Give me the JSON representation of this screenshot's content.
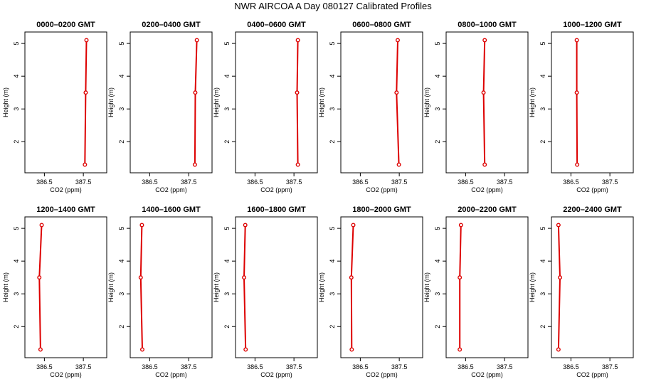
{
  "figure": {
    "title": "NWR AIRCOA A  Day 080127  Calibrated Profiles"
  },
  "colors": {
    "series": "#dd0000",
    "axis": "#000000"
  },
  "chart_data": [
    {
      "type": "line",
      "title": "0000–0200 GMT",
      "xlabel": "CO2 (ppm)",
      "ylabel": "Height (m)",
      "xlim": [
        386.0,
        388.1
      ],
      "ylim": [
        1.05,
        5.35
      ],
      "xticks": [
        {
          "v": 386.5,
          "label": "386.5"
        },
        {
          "v": 387.5,
          "label": "387.5"
        }
      ],
      "yticks": [
        {
          "v": 2,
          "label": "2"
        },
        {
          "v": 3,
          "label": "3"
        },
        {
          "v": 4,
          "label": "4"
        },
        {
          "v": 5,
          "label": "5"
        }
      ],
      "series": [
        {
          "x": [
            387.54,
            387.56,
            387.58
          ],
          "y": [
            1.3,
            3.5,
            5.1
          ]
        }
      ]
    },
    {
      "type": "line",
      "title": "0200–0400 GMT",
      "xlabel": "CO2 (ppm)",
      "ylabel": "Height (m)",
      "xlim": [
        386.0,
        388.1
      ],
      "ylim": [
        1.05,
        5.35
      ],
      "xticks": [
        {
          "v": 386.5,
          "label": "386.5"
        },
        {
          "v": 387.5,
          "label": "387.5"
        }
      ],
      "yticks": [
        {
          "v": 2,
          "label": "2"
        },
        {
          "v": 3,
          "label": "3"
        },
        {
          "v": 4,
          "label": "4"
        },
        {
          "v": 5,
          "label": "5"
        }
      ],
      "series": [
        {
          "x": [
            387.66,
            387.67,
            387.71
          ],
          "y": [
            1.3,
            3.5,
            5.1
          ]
        }
      ]
    },
    {
      "type": "line",
      "title": "0400–0600 GMT",
      "xlabel": "CO2 (ppm)",
      "ylabel": "Height (m)",
      "xlim": [
        386.0,
        388.1
      ],
      "ylim": [
        1.05,
        5.35
      ],
      "xticks": [
        {
          "v": 386.5,
          "label": "386.5"
        },
        {
          "v": 387.5,
          "label": "387.5"
        }
      ],
      "yticks": [
        {
          "v": 2,
          "label": "2"
        },
        {
          "v": 3,
          "label": "3"
        },
        {
          "v": 4,
          "label": "4"
        },
        {
          "v": 5,
          "label": "5"
        }
      ],
      "series": [
        {
          "x": [
            387.6,
            387.58,
            387.6
          ],
          "y": [
            1.3,
            3.5,
            5.1
          ]
        }
      ]
    },
    {
      "type": "line",
      "title": "0600–0800 GMT",
      "xlabel": "CO2 (ppm)",
      "ylabel": "Height (m)",
      "xlim": [
        386.0,
        388.1
      ],
      "ylim": [
        1.05,
        5.35
      ],
      "xticks": [
        {
          "v": 386.5,
          "label": "386.5"
        },
        {
          "v": 387.5,
          "label": "387.5"
        }
      ],
      "yticks": [
        {
          "v": 2,
          "label": "2"
        },
        {
          "v": 3,
          "label": "3"
        },
        {
          "v": 4,
          "label": "4"
        },
        {
          "v": 5,
          "label": "5"
        }
      ],
      "series": [
        {
          "x": [
            387.49,
            387.43,
            387.46
          ],
          "y": [
            1.3,
            3.5,
            5.1
          ]
        }
      ]
    },
    {
      "type": "line",
      "title": "0800–1000 GMT",
      "xlabel": "CO2 (ppm)",
      "ylabel": "Height (m)",
      "xlim": [
        386.0,
        388.1
      ],
      "ylim": [
        1.05,
        5.35
      ],
      "xticks": [
        {
          "v": 386.5,
          "label": "386.5"
        },
        {
          "v": 387.5,
          "label": "387.5"
        }
      ],
      "yticks": [
        {
          "v": 2,
          "label": "2"
        },
        {
          "v": 3,
          "label": "3"
        },
        {
          "v": 4,
          "label": "4"
        },
        {
          "v": 5,
          "label": "5"
        }
      ],
      "series": [
        {
          "x": [
            386.99,
            386.96,
            386.99
          ],
          "y": [
            1.3,
            3.5,
            5.1
          ]
        }
      ]
    },
    {
      "type": "line",
      "title": "1000–1200 GMT",
      "xlabel": "CO2 (ppm)",
      "ylabel": "Height (m)",
      "xlim": [
        386.0,
        388.1
      ],
      "ylim": [
        1.05,
        5.35
      ],
      "xticks": [
        {
          "v": 386.5,
          "label": "386.5"
        },
        {
          "v": 387.5,
          "label": "387.5"
        }
      ],
      "yticks": [
        {
          "v": 2,
          "label": "2"
        },
        {
          "v": 3,
          "label": "3"
        },
        {
          "v": 4,
          "label": "4"
        },
        {
          "v": 5,
          "label": "5"
        }
      ],
      "series": [
        {
          "x": [
            386.66,
            386.65,
            386.65
          ],
          "y": [
            1.3,
            3.5,
            5.1
          ]
        }
      ]
    },
    {
      "type": "line",
      "title": "1200–1400 GMT",
      "xlabel": "CO2 (ppm)",
      "ylabel": "Height (m)",
      "xlim": [
        386.0,
        388.1
      ],
      "ylim": [
        1.05,
        5.35
      ],
      "xticks": [
        {
          "v": 386.5,
          "label": "386.5"
        },
        {
          "v": 387.5,
          "label": "387.5"
        }
      ],
      "yticks": [
        {
          "v": 2,
          "label": "2"
        },
        {
          "v": 3,
          "label": "3"
        },
        {
          "v": 4,
          "label": "4"
        },
        {
          "v": 5,
          "label": "5"
        }
      ],
      "series": [
        {
          "x": [
            386.4,
            386.37,
            386.43
          ],
          "y": [
            1.3,
            3.5,
            5.1
          ]
        }
      ]
    },
    {
      "type": "line",
      "title": "1400–1600 GMT",
      "xlabel": "CO2 (ppm)",
      "ylabel": "Height (m)",
      "xlim": [
        386.0,
        388.1
      ],
      "ylim": [
        1.05,
        5.35
      ],
      "xticks": [
        {
          "v": 386.5,
          "label": "386.5"
        },
        {
          "v": 387.5,
          "label": "387.5"
        }
      ],
      "yticks": [
        {
          "v": 2,
          "label": "2"
        },
        {
          "v": 3,
          "label": "3"
        },
        {
          "v": 4,
          "label": "4"
        },
        {
          "v": 5,
          "label": "5"
        }
      ],
      "series": [
        {
          "x": [
            386.31,
            386.27,
            386.3
          ],
          "y": [
            1.3,
            3.5,
            5.1
          ]
        }
      ]
    },
    {
      "type": "line",
      "title": "1600–1800 GMT",
      "xlabel": "CO2 (ppm)",
      "ylabel": "Height (m)",
      "xlim": [
        386.0,
        388.1
      ],
      "ylim": [
        1.05,
        5.35
      ],
      "xticks": [
        {
          "v": 386.5,
          "label": "386.5"
        },
        {
          "v": 387.5,
          "label": "387.5"
        }
      ],
      "yticks": [
        {
          "v": 2,
          "label": "2"
        },
        {
          "v": 3,
          "label": "3"
        },
        {
          "v": 4,
          "label": "4"
        },
        {
          "v": 5,
          "label": "5"
        }
      ],
      "series": [
        {
          "x": [
            386.26,
            386.22,
            386.25
          ],
          "y": [
            1.3,
            3.5,
            5.1
          ]
        }
      ]
    },
    {
      "type": "line",
      "title": "1800–2000 GMT",
      "xlabel": "CO2 (ppm)",
      "ylabel": "Height (m)",
      "xlim": [
        386.0,
        388.1
      ],
      "ylim": [
        1.05,
        5.35
      ],
      "xticks": [
        {
          "v": 386.5,
          "label": "386.5"
        },
        {
          "v": 387.5,
          "label": "387.5"
        }
      ],
      "yticks": [
        {
          "v": 2,
          "label": "2"
        },
        {
          "v": 3,
          "label": "3"
        },
        {
          "v": 4,
          "label": "4"
        },
        {
          "v": 5,
          "label": "5"
        }
      ],
      "series": [
        {
          "x": [
            386.28,
            386.27,
            386.32
          ],
          "y": [
            1.3,
            3.5,
            5.1
          ]
        }
      ]
    },
    {
      "type": "line",
      "title": "2000–2200 GMT",
      "xlabel": "CO2 (ppm)",
      "ylabel": "Height (m)",
      "xlim": [
        386.0,
        388.1
      ],
      "ylim": [
        1.05,
        5.35
      ],
      "xticks": [
        {
          "v": 386.5,
          "label": "386.5"
        },
        {
          "v": 387.5,
          "label": "387.5"
        }
      ],
      "yticks": [
        {
          "v": 2,
          "label": "2"
        },
        {
          "v": 3,
          "label": "3"
        },
        {
          "v": 4,
          "label": "4"
        },
        {
          "v": 5,
          "label": "5"
        }
      ],
      "series": [
        {
          "x": [
            386.35,
            386.35,
            386.38
          ],
          "y": [
            1.3,
            3.5,
            5.1
          ]
        }
      ]
    },
    {
      "type": "line",
      "title": "2200–2400 GMT",
      "xlabel": "CO2 (ppm)",
      "ylabel": "Height (m)",
      "xlim": [
        386.0,
        388.1
      ],
      "ylim": [
        1.05,
        5.35
      ],
      "xticks": [
        {
          "v": 386.5,
          "label": "386.5"
        },
        {
          "v": 387.5,
          "label": "387.5"
        }
      ],
      "yticks": [
        {
          "v": 2,
          "label": "2"
        },
        {
          "v": 3,
          "label": "3"
        },
        {
          "v": 4,
          "label": "4"
        },
        {
          "v": 5,
          "label": "5"
        }
      ],
      "series": [
        {
          "x": [
            386.18,
            386.22,
            386.18
          ],
          "y": [
            1.3,
            3.5,
            5.1
          ]
        }
      ]
    }
  ]
}
